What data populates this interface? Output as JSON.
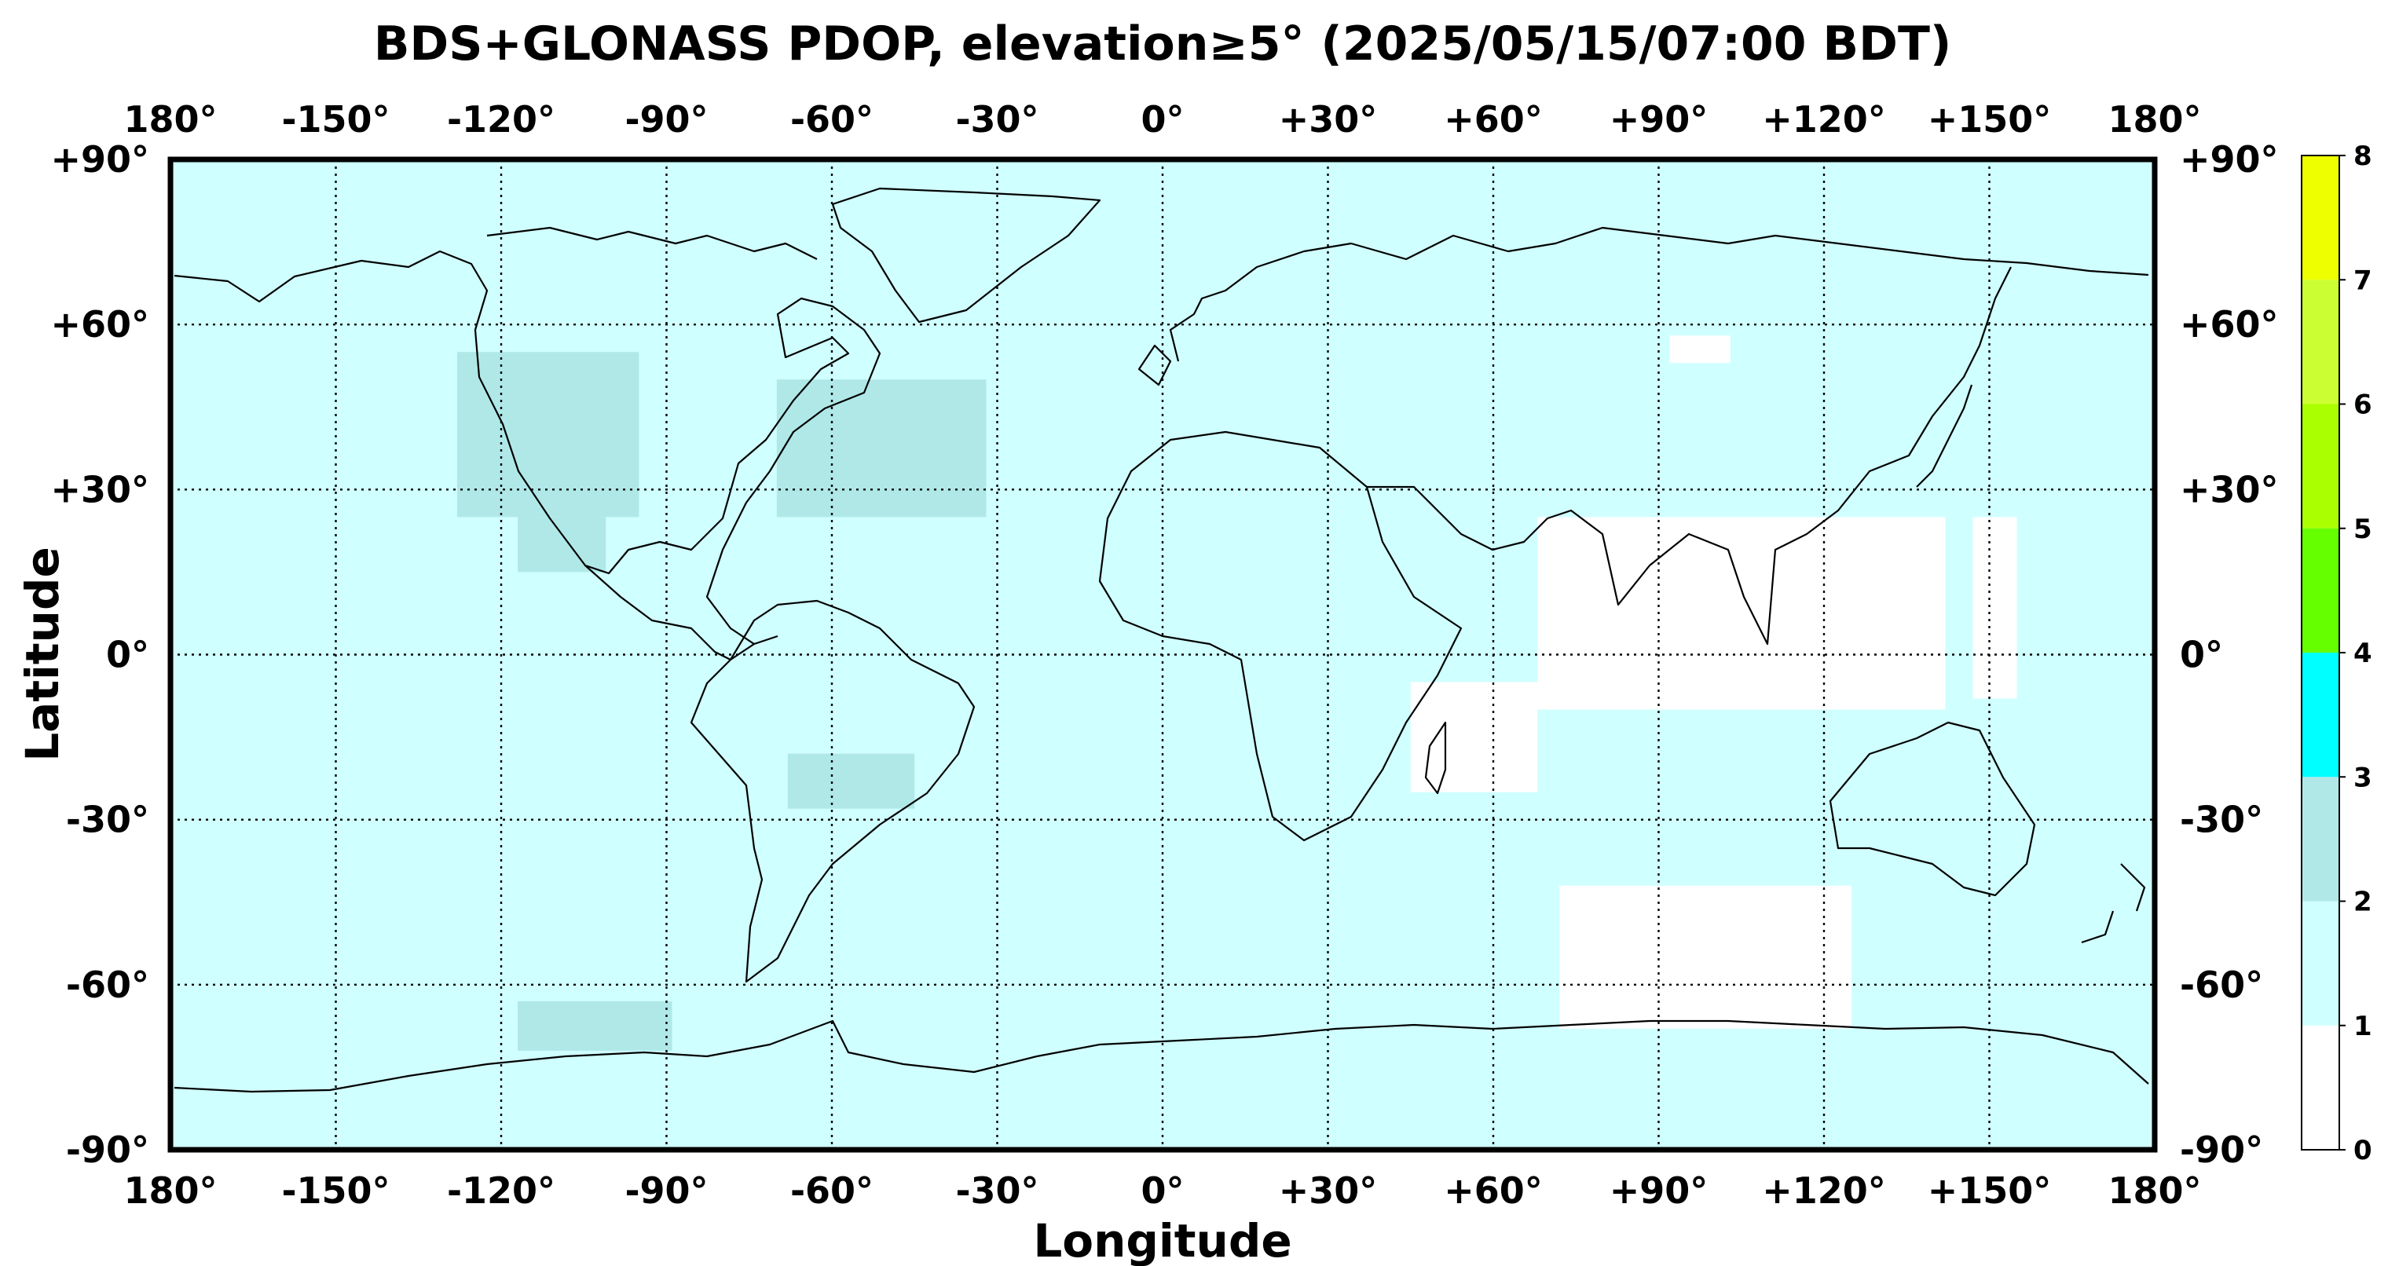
{
  "title": "BDS+GLONASS PDOP, elevation≥5° (2025/05/15/07:00 BDT)",
  "xlabel": "Longitude",
  "ylabel": "Latitude",
  "lon_ticks": [
    "180°",
    "-150°",
    "-120°",
    "-90°",
    "-60°",
    "-30°",
    "0°",
    "+30°",
    "+60°",
    "+90°",
    "+120°",
    "+150°",
    "180°"
  ],
  "lat_ticks": [
    "+90°",
    "+60°",
    "+30°",
    "0°",
    "-30°",
    "-60°",
    "-90°"
  ],
  "colorbar": {
    "ticks": [
      "0",
      "1",
      "2",
      "3",
      "4",
      "5",
      "6",
      "7",
      "8"
    ],
    "colors": [
      "#ffffff",
      "#d0ffff",
      "#b0e8e8",
      "#00ffff",
      "#66ff00",
      "#aaff00",
      "#ccff33",
      "#eeff00",
      "#ffee33"
    ]
  },
  "chart_data": {
    "type": "heatmap",
    "title": "BDS+GLONASS PDOP, elevation≥5° (2025/05/15/07:00 BDT)",
    "xlabel": "Longitude",
    "ylabel": "Latitude",
    "xlim": [
      -180,
      180
    ],
    "ylim": [
      -90,
      90
    ],
    "grid": true,
    "background_value_range": [
      1,
      2
    ],
    "regions": [
      {
        "range": [
          2,
          3
        ],
        "lon": [
          -128,
          -95
        ],
        "lat": [
          25,
          55
        ]
      },
      {
        "range": [
          2,
          3
        ],
        "lon": [
          -70,
          -32
        ],
        "lat": [
          25,
          50
        ]
      },
      {
        "range": [
          2,
          3
        ],
        "lon": [
          -117,
          -101
        ],
        "lat": [
          15,
          25
        ]
      },
      {
        "range": [
          2,
          3
        ],
        "lon": [
          -68,
          -45
        ],
        "lat": [
          -28,
          -18
        ]
      },
      {
        "range": [
          2,
          3
        ],
        "lon": [
          -117,
          -89
        ],
        "lat": [
          -72,
          -63
        ]
      },
      {
        "range": [
          0,
          1
        ],
        "lon": [
          68,
          142
        ],
        "lat": [
          -10,
          25
        ]
      },
      {
        "range": [
          0,
          1
        ],
        "lon": [
          45,
          68
        ],
        "lat": [
          -25,
          -5
        ]
      },
      {
        "range": [
          0,
          1
        ],
        "lon": [
          72,
          125
        ],
        "lat": [
          -68,
          -42
        ]
      },
      {
        "range": [
          0,
          1
        ],
        "lon": [
          147,
          155
        ],
        "lat": [
          -8,
          25
        ]
      },
      {
        "range": [
          0,
          1
        ],
        "lon": [
          92,
          103
        ],
        "lat": [
          53,
          58
        ]
      }
    ]
  }
}
